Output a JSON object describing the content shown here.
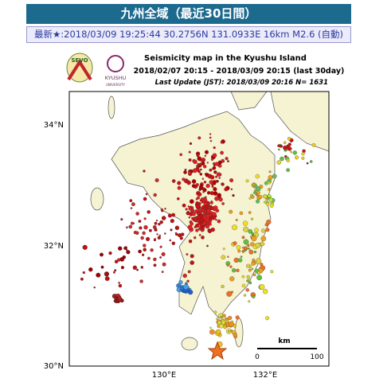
{
  "header": {
    "title": "九州全域（最近30日間）",
    "latest": "最新★:2018/03/09 19:25:44 30.2756N 131.0933E 16km M2.6 (自動)"
  },
  "logos": {
    "left": "SEVO",
    "right": "KYUSHU",
    "right_sub": "UNIVERSITY"
  },
  "map": {
    "title": "Seismicity map in the Kyushu Island",
    "period": "2018/02/07 20:15 - 2018/03/09 20:15 (last 30day)",
    "update": "Last Update (JST): 2018/03/09 20:16  N= 1631",
    "y_labels": [
      "34°N",
      "32°N",
      "30°N"
    ],
    "x_labels": [
      "130°E",
      "132°E"
    ],
    "scale": {
      "unit": "km",
      "start": "0",
      "end": "100"
    }
  }
}
